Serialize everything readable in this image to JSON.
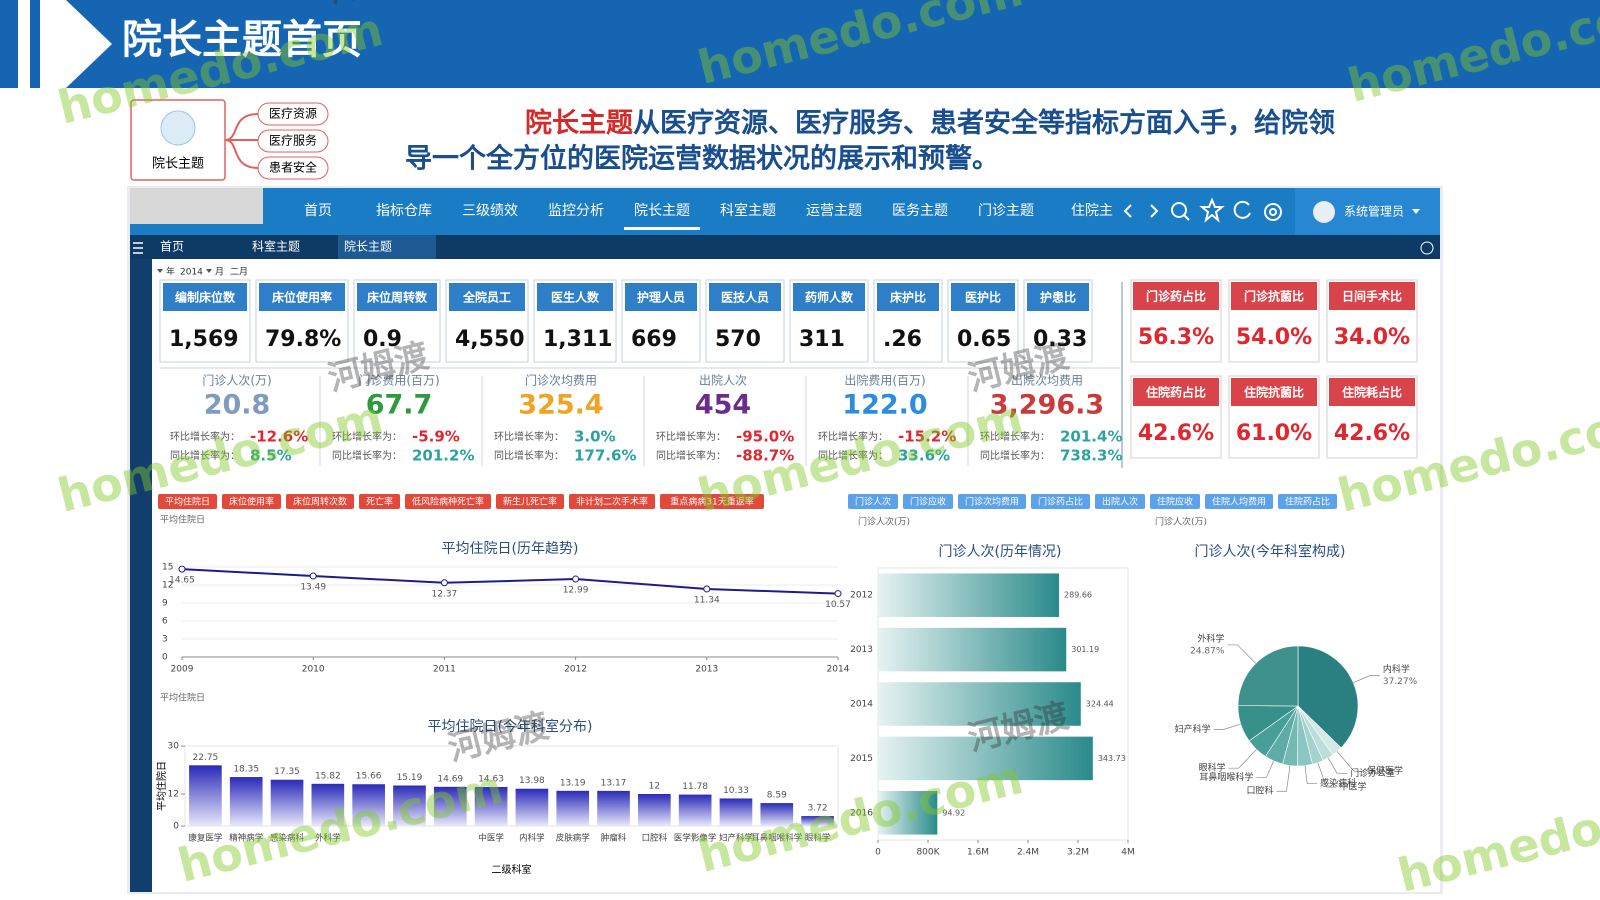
{
  "header": {
    "title": "院长主题首页"
  },
  "watermark": {
    "site": "homedo.com",
    "brand": "河姆渡"
  },
  "intro": {
    "mindmap": {
      "root": "院长主题",
      "branches": [
        "医疗资源",
        "医疗服务",
        "患者安全"
      ]
    },
    "highlight": "院长主题",
    "line1": "从医疗资源、医疗服务、患者安全等指标方面入手，给院领",
    "line2": "导一个全方位的医院运营数据状况的展示和预警。"
  },
  "app": {
    "nav": [
      "首页",
      "指标仓库",
      "三级绩效",
      "监控分析",
      "院长主题",
      "科室主题",
      "运营主题",
      "医务主题",
      "门诊主题",
      "住院主"
    ],
    "user": "系统管理员",
    "tabs": [
      "首页",
      "科室主题",
      "院长主题"
    ],
    "filter": {
      "year_label": "年",
      "year": "2014",
      "month_label": "月",
      "month": "二月"
    }
  },
  "kpis": [
    {
      "label": "编制床位数",
      "value": "1,569"
    },
    {
      "label": "床位使用率",
      "value": "79.8%"
    },
    {
      "label": "床位周转数",
      "value": "0.9"
    },
    {
      "label": "全院员工",
      "value": "4,550"
    },
    {
      "label": "医生人数",
      "value": "1,311"
    },
    {
      "label": "护理人员",
      "value": "669"
    },
    {
      "label": "医技人员",
      "value": "570"
    },
    {
      "label": "药师人数",
      "value": "311"
    },
    {
      "label": "床护比",
      "value": ".26"
    },
    {
      "label": "医护比",
      "value": "0.65"
    },
    {
      "label": "护患比",
      "value": "0.33"
    }
  ],
  "alerts": [
    {
      "label": "门诊药占比",
      "value": "56.3%"
    },
    {
      "label": "门诊抗菌比",
      "value": "54.0%"
    },
    {
      "label": "日间手术比",
      "value": "34.0%"
    },
    {
      "label": "住院药占比",
      "value": "42.6%"
    },
    {
      "label": "住院抗菌比",
      "value": "61.0%"
    },
    {
      "label": "住院耗占比",
      "value": "42.6%"
    }
  ],
  "stats": [
    {
      "title": "门诊人次(万)",
      "value": "20.8",
      "color": "#7f9bbf",
      "mom_label": "环比增长率为：",
      "mom": "-12.6%",
      "yoy_label": "同比增长率为：",
      "yoy": "8.5%"
    },
    {
      "title": "门诊费用(百万)",
      "value": "67.7",
      "color": "#2e9a3e",
      "mom_label": "环比增长率为：",
      "mom": "-5.9%",
      "yoy_label": "同比增长率为：",
      "yoy": "201.2%"
    },
    {
      "title": "门诊次均费用",
      "value": "325.4",
      "color": "#f0a424",
      "mom_label": "环比增长率为：",
      "mom": "3.0%",
      "yoy_label": "同比增长率为：",
      "yoy": "177.6%"
    },
    {
      "title": "出院人次",
      "value": "454",
      "color": "#6b2d8c",
      "mom_label": "环比增长率为：",
      "mom": "-95.0%",
      "yoy_label": "同比增长率为：",
      "yoy": "-88.7%"
    },
    {
      "title": "出院费用(百万)",
      "value": "122.0",
      "color": "#2d8ddc",
      "mom_label": "环比增长率为：",
      "mom": "-15.2%",
      "yoy_label": "同比增长率为：",
      "yoy": "33.6%"
    },
    {
      "title": "出院次均费用",
      "value": "3,296.3",
      "color": "#c93b3b",
      "mom_label": "环比增长率为：",
      "mom": "201.4%",
      "yoy_label": "同比增长率为：",
      "yoy": "738.3%"
    }
  ],
  "buttons": {
    "inpatient": [
      "平均住院日",
      "床位使用率",
      "床位周转次数",
      "死亡率",
      "低风险病种死亡率",
      "新生儿死亡率",
      "非计划二次手术率",
      "重点病病31天重返率"
    ],
    "outpatient": [
      "门诊人次",
      "门诊应收",
      "门诊次均费用",
      "门诊药占比",
      "出院人次",
      "住院应收",
      "住院人均费用",
      "住院药占比"
    ]
  },
  "chart_data": [
    {
      "type": "line",
      "title": "平均住院日(历年趋势)",
      "caption": "平均住院日",
      "x": [
        2009,
        2010,
        2011,
        2012,
        2013,
        2014
      ],
      "values": [
        14.65,
        13.49,
        12.37,
        12.99,
        11.34,
        10.57
      ],
      "color": "#1c1c8e",
      "xlim": [
        2009,
        2014
      ],
      "xticks": [
        2009,
        2010,
        2011,
        2012,
        2013,
        2014
      ],
      "ylim": [
        0,
        15
      ],
      "yticks": [
        0,
        3,
        6,
        9,
        12,
        15
      ],
      "grid": true
    },
    {
      "type": "bar",
      "title": "平均住院日(今年科室分布)",
      "caption": "平均住院日",
      "ylabel": "平均住院日",
      "xlabel": "二级科室",
      "categories": [
        "康复医学",
        "精神病学",
        "感染病科",
        "外科学",
        null,
        null,
        null,
        "中医学",
        "内科学",
        "皮肤病学",
        "肿瘤科",
        "口腔科",
        "医学影像学",
        "妇产科学",
        "耳鼻咽喉科学",
        "眼科学"
      ],
      "values": [
        22.75,
        18.35,
        17.35,
        15.82,
        15.66,
        15.19,
        14.69,
        14.63,
        13.98,
        13.19,
        13.17,
        12.0,
        11.78,
        10.33,
        8.59,
        3.72
      ],
      "color": "#3434c2",
      "ylim": [
        0,
        30
      ],
      "yticks": [
        0,
        12,
        30
      ]
    },
    {
      "type": "hbar",
      "title": "门诊人次(历年情况)",
      "caption": "门诊人次(万)",
      "categories": [
        "2012",
        "2013",
        "2014",
        "2015",
        "2016"
      ],
      "values": [
        2896600,
        3011900,
        3244400,
        3437300,
        949200
      ],
      "value_labels": [
        "289.66",
        "301.19",
        "324.44",
        "343.73",
        "94.92"
      ],
      "color": "#2a8a8a",
      "xlim": [
        0,
        4000000
      ],
      "xticks": [
        0,
        {
          "value": 800000,
          "label": "800K"
        },
        {
          "value": 1600000,
          "label": "1.6M"
        },
        {
          "value": 2400000,
          "label": "2.4M"
        },
        {
          "value": 3200000,
          "label": "3.2M"
        },
        {
          "value": 4000000,
          "label": "4M"
        }
      ]
    },
    {
      "type": "pie",
      "title": "门诊人次(今年科室构成)",
      "caption": "门诊人次(万)",
      "categories": [
        "内科学",
        "保健医学",
        "门诊办公室",
        "中医学",
        "感染病科",
        "口腔科",
        "耳鼻咽喉科学",
        "眼科学",
        "妇产科学",
        "外科学"
      ],
      "values": [
        37.27,
        2.86,
        3,
        3,
        4,
        4,
        5,
        6,
        10,
        24.87
      ],
      "value_labels": [
        "37.27%",
        null,
        null,
        null,
        null,
        null,
        null,
        null,
        null,
        "24.87%"
      ],
      "colors": [
        "#2a8080",
        "#d3e9e7",
        "#bcdedb",
        "#a4d2ce",
        "#8cc6c2",
        "#73b9b4",
        "#5eaca7",
        "#489e99",
        "#38908b",
        "#3f918e"
      ]
    }
  ]
}
